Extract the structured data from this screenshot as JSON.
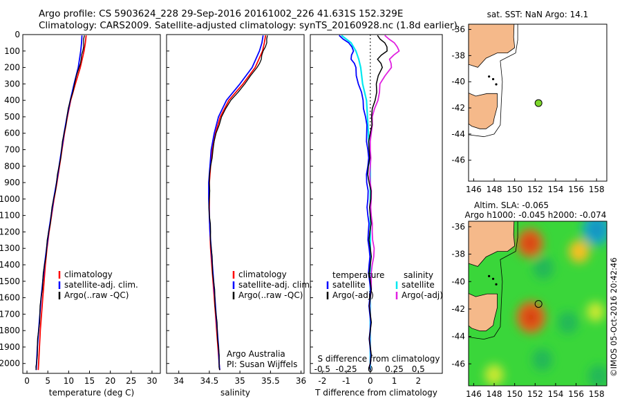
{
  "header": {
    "line1": "Argo profile: CS 5903624_228 29-Sep-2016 20161002_226 41.631S 152.329E",
    "line2": "Climatology: CARS2009. Satellite-adjusted climatology: synTS_20160928.nc (1.8d earlier)"
  },
  "colors": {
    "climatology": "#ff0000",
    "satellite": "#0000ff",
    "argo": "#000000",
    "sal_sat": "#00e8f0",
    "sal_argo": "#e020e0",
    "land": "#f5b98a"
  },
  "chart_data": [
    {
      "type": "line",
      "id": "temperature",
      "xlabel": "temperature (deg C)",
      "xlim": [
        -1,
        32
      ],
      "ylim": [
        0,
        2060
      ],
      "xticks": [
        "0",
        "5",
        "10",
        "15",
        "20",
        "25",
        "30"
      ],
      "yticks": [
        "0",
        "100",
        "200",
        "300",
        "400",
        "500",
        "600",
        "700",
        "800",
        "900",
        "1000",
        "1100",
        "1200",
        "1300",
        "1400",
        "1500",
        "1600",
        "1700",
        "1800",
        "1900",
        "2000"
      ],
      "legend": [
        "climatology",
        "satellite-adj. clim.",
        "Argo(..raw -QC)"
      ],
      "series": [
        {
          "name": "climatology",
          "depth": [
            5,
            50,
            100,
            200,
            300,
            400,
            500,
            600,
            700,
            800,
            900,
            1000,
            1100,
            1200,
            1300,
            1400,
            1500,
            1600,
            1700,
            1800,
            1900,
            2000,
            2040
          ],
          "values": [
            14.2,
            14.0,
            13.7,
            12.8,
            11.6,
            10.5,
            9.7,
            9.0,
            8.4,
            7.8,
            7.2,
            6.5,
            5.9,
            5.3,
            4.8,
            4.4,
            4.1,
            3.8,
            3.5,
            3.2,
            3.0,
            2.8,
            2.7
          ]
        },
        {
          "name": "satellite-adj. clim.",
          "depth": [
            5,
            50,
            100,
            200,
            300,
            400,
            500,
            600,
            700,
            800,
            900,
            1000,
            1100,
            1200,
            1300,
            1400,
            1500,
            1600,
            1700,
            1800,
            1900,
            2000,
            2040
          ],
          "values": [
            13.2,
            13.1,
            12.9,
            12.3,
            11.3,
            10.4,
            9.6,
            8.9,
            8.3,
            7.7,
            7.1,
            6.4,
            5.8,
            5.2,
            4.7,
            4.2,
            3.8,
            3.4,
            3.1,
            2.8,
            2.5,
            2.3,
            2.2
          ]
        },
        {
          "name": "Argo(..raw -QC)",
          "depth": [
            5,
            50,
            100,
            150,
            200,
            300,
            400,
            500,
            600,
            700,
            800,
            900,
            1000,
            1100,
            1200,
            1300,
            1400,
            1500,
            1600,
            1700,
            1800,
            1900,
            2000,
            2040
          ],
          "values": [
            13.8,
            13.6,
            13.4,
            13.0,
            12.5,
            11.4,
            10.4,
            9.6,
            8.9,
            8.3,
            7.7,
            7.1,
            6.4,
            5.8,
            5.2,
            4.7,
            4.2,
            3.8,
            3.4,
            3.1,
            2.8,
            2.5,
            2.3,
            2.2
          ]
        }
      ]
    },
    {
      "type": "line",
      "id": "salinity",
      "xlabel": "salinity",
      "xlim": [
        33.8,
        36.05
      ],
      "ylim": [
        0,
        2060
      ],
      "xticks": [
        "34",
        "34.5",
        "35",
        "35.5",
        "36"
      ],
      "legend": [
        "climatology",
        "satellite-adj. clim.",
        "Argo(..raw -QC)"
      ],
      "annotation": [
        "Argo Australia",
        "PI: Susan Wijffels"
      ],
      "series": [
        {
          "name": "climatology",
          "depth": [
            5,
            50,
            100,
            200,
            300,
            400,
            500,
            600,
            700,
            800,
            900,
            1000,
            1100,
            1200,
            1300,
            1400,
            1500,
            1600,
            1700,
            1800,
            1900,
            2000,
            2040
          ],
          "values": [
            35.42,
            35.4,
            35.37,
            35.25,
            35.05,
            34.82,
            34.68,
            34.6,
            34.55,
            34.52,
            34.5,
            34.5,
            34.5,
            34.51,
            34.52,
            34.54,
            34.56,
            34.58,
            34.6,
            34.62,
            34.64,
            34.66,
            34.67
          ]
        },
        {
          "name": "satellite-adj. clim.",
          "depth": [
            5,
            50,
            100,
            200,
            300,
            400,
            500,
            600,
            700,
            800,
            900,
            1000,
            1100,
            1200,
            1300,
            1400,
            1500,
            1600,
            1700,
            1800,
            1900,
            2000,
            2040
          ],
          "values": [
            35.38,
            35.36,
            35.32,
            35.2,
            35.0,
            34.78,
            34.65,
            34.58,
            34.53,
            34.51,
            34.49,
            34.49,
            34.5,
            34.51,
            34.53,
            34.55,
            34.57,
            34.59,
            34.61,
            34.63,
            34.65,
            34.66,
            34.67
          ]
        },
        {
          "name": "Argo(..raw -QC)",
          "depth": [
            5,
            50,
            100,
            150,
            200,
            300,
            400,
            500,
            600,
            700,
            800,
            900,
            1000,
            1100,
            1200,
            1300,
            1400,
            1500,
            1600,
            1700,
            1800,
            1900,
            2000,
            2040
          ],
          "values": [
            35.45,
            35.44,
            35.38,
            35.35,
            35.28,
            35.08,
            34.85,
            34.7,
            34.61,
            34.56,
            34.52,
            34.5,
            34.5,
            34.5,
            34.52,
            34.53,
            34.55,
            34.57,
            34.59,
            34.61,
            34.63,
            34.65,
            34.66,
            34.67
          ]
        }
      ]
    },
    {
      "type": "line",
      "id": "difference",
      "xlabel": "T difference from climatology",
      "xlabel_top": "S difference from climatology",
      "xlim": [
        -2.5,
        3
      ],
      "ylim": [
        0,
        2060
      ],
      "xticks": [
        "-2",
        "-1",
        "0",
        "1",
        "2"
      ],
      "xticks_s": [
        "-0.5",
        "-0.25",
        "0",
        "0.25",
        "0.5"
      ],
      "zero_line": true,
      "legend_temperature": {
        "title": "temperature",
        "items": [
          "satellite",
          "Argo(-adj)"
        ]
      },
      "legend_salinity": {
        "title": "salinity",
        "items": [
          "satellite",
          "Argo(-adj)"
        ]
      },
      "series": [
        {
          "name": "temperature satellite",
          "depth": [
            5,
            50,
            100,
            150,
            200,
            300,
            400,
            500,
            600,
            700,
            800,
            900,
            1000,
            1100,
            1200,
            1300,
            1400,
            1500,
            1600,
            1700,
            1800,
            1900,
            2000,
            2040
          ],
          "values": [
            -1.3,
            -0.9,
            -0.7,
            -0.8,
            -0.6,
            -0.5,
            -0.3,
            -0.2,
            -0.15,
            -0.1,
            -0.1,
            -0.15,
            -0.1,
            -0.1,
            -0.08,
            -0.05,
            -0.05,
            -0.03,
            -0.02,
            -0.02,
            -0.01,
            -0.01,
            0,
            0
          ]
        },
        {
          "name": "temperature Argo(-adj)",
          "depth": [
            5,
            50,
            100,
            150,
            200,
            300,
            400,
            500,
            600,
            700,
            800,
            900,
            1000,
            1100,
            1200,
            1300,
            1400,
            1500,
            1600,
            1700,
            1800,
            1900,
            2000,
            2040
          ],
          "values": [
            0.3,
            0.6,
            0.7,
            0.3,
            0.5,
            0.25,
            0.2,
            0.05,
            0.0,
            -0.05,
            -0.08,
            -0.05,
            0.02,
            0.0,
            -0.02,
            0.0,
            0.0,
            0.0,
            0.0,
            0.0,
            0.0,
            0.0,
            0.0,
            0.0
          ]
        },
        {
          "name": "salinity satellite",
          "depth": [
            5,
            50,
            100,
            150,
            200,
            300,
            400,
            500,
            600,
            700,
            800,
            900,
            1000,
            1100,
            1200,
            1300,
            1400,
            1500,
            1600,
            1700,
            1800,
            1900,
            2000,
            2040
          ],
          "values": [
            -0.3,
            -0.2,
            -0.15,
            -0.12,
            -0.1,
            -0.08,
            -0.04,
            -0.03,
            -0.02,
            -0.01,
            0.0,
            0.0,
            0.0,
            0.0,
            0.0,
            0.0,
            0.0,
            0.0,
            0.0,
            0.0,
            0.0,
            0.0,
            0.0,
            0.0
          ]
        },
        {
          "name": "salinity Argo(-adj)",
          "depth": [
            5,
            50,
            100,
            150,
            200,
            300,
            400,
            500,
            600,
            700,
            800,
            900,
            1000,
            1100,
            1200,
            1300,
            1400,
            1500,
            1600,
            1700,
            1800,
            1900,
            2000,
            2040
          ],
          "values": [
            0.15,
            0.25,
            0.3,
            0.2,
            0.22,
            0.1,
            0.08,
            0.02,
            0.01,
            0.0,
            0.0,
            0.0,
            0.01,
            0.01,
            0.02,
            0.04,
            0.02,
            0.01,
            0.0,
            0.0,
            0.0,
            0.0,
            0.0,
            0.0
          ]
        }
      ]
    },
    {
      "type": "map",
      "id": "sst_map",
      "title": "sat. SST: NaN  Argo: 14.1",
      "xlim": [
        145.5,
        159
      ],
      "ylim": [
        -47.6,
        -35.6
      ],
      "xticks": [
        "146",
        "148",
        "150",
        "152",
        "154",
        "156",
        "158"
      ],
      "yticks": [
        "-36",
        "-38",
        "-40",
        "-42",
        "-44",
        "-46"
      ],
      "float_position": {
        "lon": 152.33,
        "lat": -41.63
      }
    },
    {
      "type": "heatmap",
      "id": "sla_map",
      "title1": "Altim. SLA: -0.065",
      "title2": "Argo h1000: -0.045 h2000: -0.074",
      "xlim": [
        145.5,
        159
      ],
      "ylim": [
        -47.6,
        -35.6
      ],
      "xticks": [
        "146",
        "148",
        "150",
        "152",
        "154",
        "156",
        "158"
      ],
      "yticks": [
        "-36",
        "-38",
        "-40",
        "-42",
        "-44",
        "-46"
      ],
      "float_position": {
        "lon": 152.33,
        "lat": -41.63
      },
      "anomaly_blobs": [
        {
          "lon": 151.5,
          "lat": -37.2,
          "value": 0.25
        },
        {
          "lon": 156.3,
          "lat": -37.8,
          "value": 0.15
        },
        {
          "lon": 151.6,
          "lat": -42.6,
          "value": 0.3
        },
        {
          "lon": 148.0,
          "lat": -46.8,
          "value": 0.12
        },
        {
          "lon": 158.0,
          "lat": -36.2,
          "value": -0.3
        },
        {
          "lon": 152.8,
          "lat": -39.0,
          "value": -0.15
        },
        {
          "lon": 155.2,
          "lat": -43.0,
          "value": -0.14
        },
        {
          "lon": 152.7,
          "lat": -45.7,
          "value": -0.14
        },
        {
          "lon": 158.2,
          "lat": -46.9,
          "value": -0.15
        },
        {
          "lon": 157.9,
          "lat": -42.2,
          "value": 0.1
        }
      ]
    }
  ],
  "stamp": "©IMOS 05-Oct-2016 20:42:46"
}
